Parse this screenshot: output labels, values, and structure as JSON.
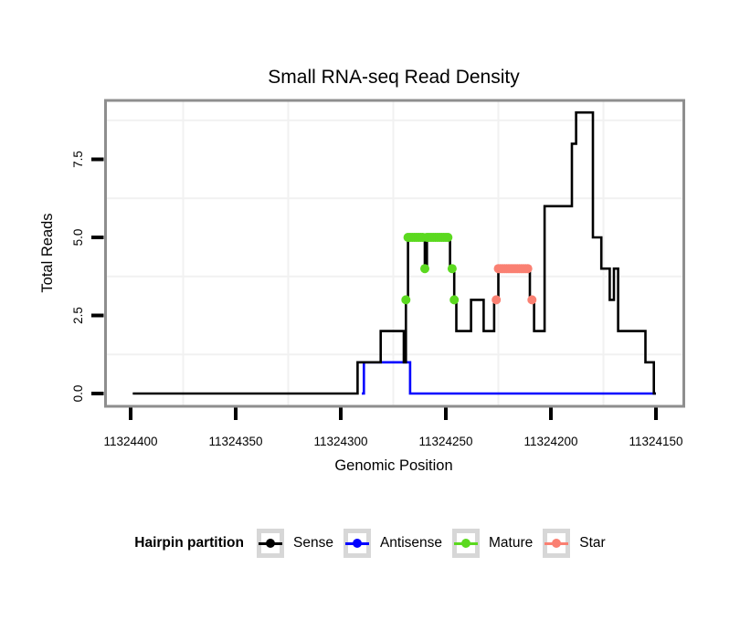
{
  "chart_data": {
    "type": "line",
    "subtype": "step-density",
    "title": "Small RNA-seq Read Density",
    "xlabel": "Genomic Position",
    "ylabel": "Total Reads",
    "x_reversed": true,
    "xlim": [
      11324412,
      11324137
    ],
    "ylim": [
      -0.4,
      9.4
    ],
    "grid": {
      "vertical_at": [
        11324375,
        11324325,
        11324275,
        11324225,
        11324175
      ],
      "horizontal_at": [
        1.25,
        3.75,
        6.25,
        8.75
      ],
      "color": "#f1f1f1"
    },
    "x_ticks": [
      {
        "v": 11324400,
        "label": "11324400"
      },
      {
        "v": 11324350,
        "label": "11324350"
      },
      {
        "v": 11324300,
        "label": "11324300"
      },
      {
        "v": 11324250,
        "label": "11324250"
      },
      {
        "v": 11324200,
        "label": "11324200"
      },
      {
        "v": 11324150,
        "label": "11324150"
      }
    ],
    "y_ticks": [
      {
        "v": 0,
        "label": "0.0"
      },
      {
        "v": 2.5,
        "label": "2.5"
      },
      {
        "v": 5,
        "label": "5.0"
      },
      {
        "v": 7.5,
        "label": "7.5"
      }
    ],
    "series": [
      {
        "name": "Sense",
        "color": "#000000",
        "type": "step",
        "draw_order": 2,
        "steps": [
          [
            11324399,
            0
          ],
          [
            11324292,
            1
          ],
          [
            11324281,
            2
          ],
          [
            11324270,
            1
          ],
          [
            11324269,
            3
          ],
          [
            11324268,
            5
          ],
          [
            11324260,
            4
          ],
          [
            11324259,
            5
          ],
          [
            11324248,
            4
          ],
          [
            11324246,
            3
          ],
          [
            11324245,
            2
          ],
          [
            11324238,
            3
          ],
          [
            11324232,
            2
          ],
          [
            11324227,
            3
          ],
          [
            11324225,
            4
          ],
          [
            11324210,
            3
          ],
          [
            11324208,
            2
          ],
          [
            11324203,
            6
          ],
          [
            11324190,
            8
          ],
          [
            11324188,
            9
          ],
          [
            11324180,
            5
          ],
          [
            11324176,
            4
          ],
          [
            11324172,
            3
          ],
          [
            11324170,
            4
          ],
          [
            11324168,
            2
          ],
          [
            11324155,
            1
          ],
          [
            11324151,
            0
          ]
        ],
        "end": 11324150
      },
      {
        "name": "Antisense",
        "color": "#0000ff",
        "type": "step",
        "draw_order": 1,
        "steps": [
          [
            11324290,
            0
          ],
          [
            11324289,
            1
          ],
          [
            11324267,
            0
          ]
        ],
        "end": 11324150
      },
      {
        "name": "Mature",
        "color": "#5bd91f",
        "type": "points",
        "draw_order": 3,
        "points": [
          [
            11324269,
            3
          ],
          [
            11324268,
            5
          ],
          [
            11324267,
            5
          ],
          [
            11324266,
            5
          ],
          [
            11324265,
            5
          ],
          [
            11324264,
            5
          ],
          [
            11324263,
            5
          ],
          [
            11324262,
            5
          ],
          [
            11324261,
            5
          ],
          [
            11324260,
            4
          ],
          [
            11324259,
            5
          ],
          [
            11324258,
            5
          ],
          [
            11324257,
            5
          ],
          [
            11324256,
            5
          ],
          [
            11324255,
            5
          ],
          [
            11324254,
            5
          ],
          [
            11324253,
            5
          ],
          [
            11324252,
            5
          ],
          [
            11324251,
            5
          ],
          [
            11324250,
            5
          ],
          [
            11324249,
            5
          ],
          [
            11324247,
            4
          ],
          [
            11324246,
            3
          ]
        ]
      },
      {
        "name": "Star",
        "color": "#fa8072",
        "type": "points",
        "draw_order": 4,
        "points": [
          [
            11324226,
            3
          ],
          [
            11324225,
            4
          ],
          [
            11324224,
            4
          ],
          [
            11324223,
            4
          ],
          [
            11324222,
            4
          ],
          [
            11324221,
            4
          ],
          [
            11324220,
            4
          ],
          [
            11324219,
            4
          ],
          [
            11324218,
            4
          ],
          [
            11324217,
            4
          ],
          [
            11324216,
            4
          ],
          [
            11324215,
            4
          ],
          [
            11324214,
            4
          ],
          [
            11324213,
            4
          ],
          [
            11324212,
            4
          ],
          [
            11324211,
            4
          ],
          [
            11324209,
            3
          ]
        ]
      }
    ]
  },
  "legend": {
    "title": "Hairpin partition",
    "items": [
      {
        "label": "Sense",
        "color": "#000000"
      },
      {
        "label": "Antisense",
        "color": "#0000ff"
      },
      {
        "label": "Mature",
        "color": "#5bd91f"
      },
      {
        "label": "Star",
        "color": "#fa8072"
      }
    ]
  }
}
